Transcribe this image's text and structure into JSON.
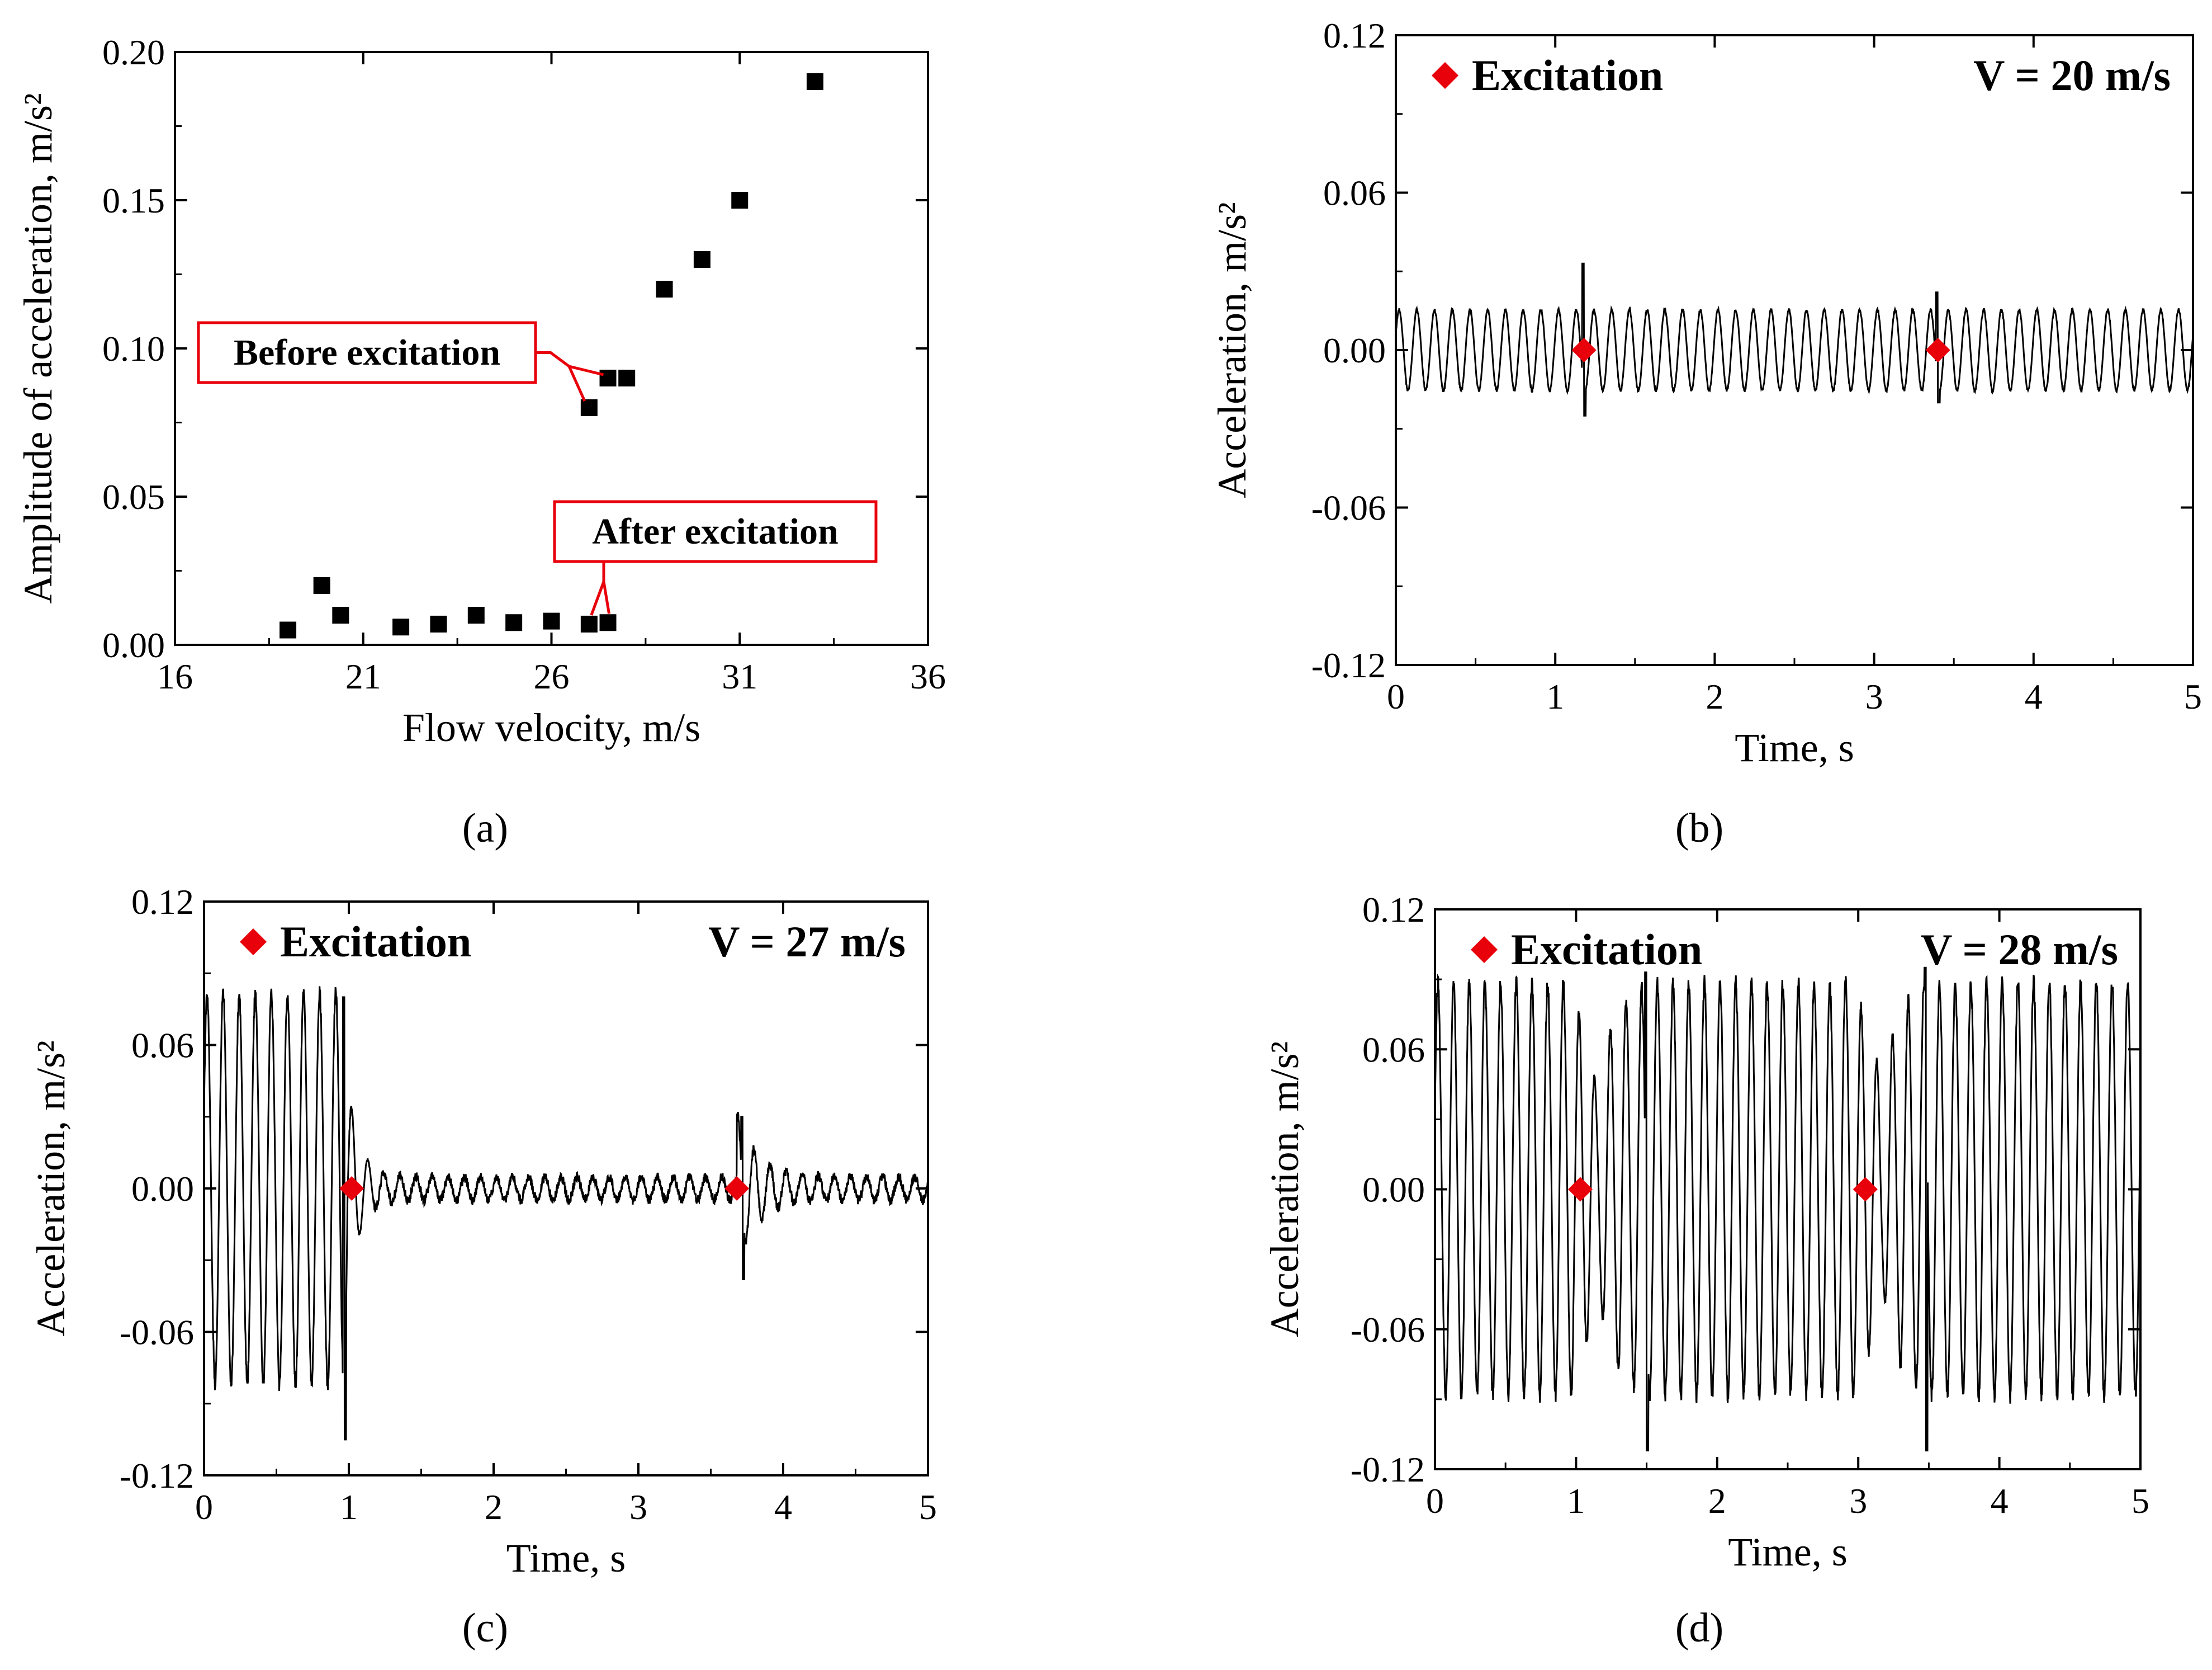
{
  "chart_data": [
    {
      "id": "a",
      "type": "scatter",
      "panel_label": "(a)",
      "xlabel": "Flow velocity, m/s",
      "ylabel": "Amplitude of acceleration, m/s²",
      "xlim": [
        16,
        36
      ],
      "ylim": [
        0,
        0.2
      ],
      "xticks": [
        "16",
        "21",
        "26",
        "31",
        "36"
      ],
      "yticks": [
        "0.00",
        "0.05",
        "0.10",
        "0.15",
        "0.20"
      ],
      "series": [
        {
          "name": "Amplitude",
          "marker": "square",
          "color": "#000000",
          "x": [
            19,
            19.9,
            20.4,
            22,
            23,
            24,
            25,
            26,
            27,
            27.5,
            27,
            27.5,
            28,
            29,
            30,
            31,
            33
          ],
          "y": [
            0.005,
            0.02,
            0.01,
            0.006,
            0.007,
            0.01,
            0.0075,
            0.008,
            0.007,
            0.0075,
            0.08,
            0.09,
            0.09,
            0.12,
            0.13,
            0.15,
            0.19
          ]
        }
      ],
      "annotations": [
        {
          "text": "Before excitation",
          "points_to": [
            [
              27,
              0.08
            ],
            [
              27.5,
              0.09
            ]
          ]
        },
        {
          "text": "After excitation",
          "points_to": [
            [
              27,
              0.007
            ],
            [
              27.5,
              0.0075
            ]
          ]
        }
      ]
    },
    {
      "id": "b",
      "type": "line",
      "panel_label": "(b)",
      "xlabel": "Time, s",
      "ylabel": "Acceleration, m/s²",
      "xlim": [
        0,
        5
      ],
      "ylim": [
        -0.12,
        0.12
      ],
      "xticks": [
        "0",
        "1",
        "2",
        "3",
        "4",
        "5"
      ],
      "yticks": [
        "-0.12",
        "-0.06",
        "0.00",
        "0.06",
        "0.12"
      ],
      "legend_label": "Excitation",
      "velocity_label": "V = 20 m/s",
      "excitation_times": [
        1.18,
        3.4
      ],
      "signal": {
        "frequency_hz": 9,
        "pre_amplitude": 0.016,
        "post_amplitude": 0.016,
        "transition": "constant",
        "spikes": [
          [
            1.18,
            0.033,
            -0.025
          ],
          [
            3.4,
            0.022,
            -0.02
          ]
        ]
      }
    },
    {
      "id": "c",
      "type": "line",
      "panel_label": "(c)",
      "xlabel": "Time, s",
      "ylabel": "Acceleration, m/s²",
      "xlim": [
        0,
        5
      ],
      "ylim": [
        -0.12,
        0.12
      ],
      "xticks": [
        "0",
        "1",
        "2",
        "3",
        "4",
        "5"
      ],
      "yticks": [
        "-0.12",
        "-0.06",
        "0.00",
        "0.06",
        "0.12"
      ],
      "legend_label": "Excitation",
      "velocity_label": "V = 27 m/s",
      "excitation_times": [
        1.02,
        3.68
      ],
      "signal": {
        "frequency_hz": 9,
        "pre_amplitude": 0.085,
        "post_amplitude": 0.005,
        "transition": "decay-at-first-excitation",
        "spikes": [
          [
            0.97,
            0.08,
            -0.105
          ],
          [
            3.72,
            0.03,
            -0.038
          ]
        ]
      }
    },
    {
      "id": "d",
      "type": "line",
      "panel_label": "(d)",
      "xlabel": "Time, s",
      "ylabel": "Acceleration, m/s²",
      "xlim": [
        0,
        5
      ],
      "ylim": [
        -0.12,
        0.12
      ],
      "xticks": [
        "0",
        "1",
        "2",
        "3",
        "4",
        "5"
      ],
      "yticks": [
        "-0.12",
        "-0.06",
        "0.00",
        "0.06",
        "0.12"
      ],
      "legend_label": "Excitation",
      "velocity_label": "V = 28 m/s",
      "excitation_times": [
        1.03,
        3.05
      ],
      "signal": {
        "frequency_hz": 9,
        "pre_amplitude": 0.092,
        "post_amplitude": 0.092,
        "transition": "dip-at-excitations",
        "spikes": [
          [
            1.5,
            0.093,
            -0.112
          ],
          [
            3.48,
            0.095,
            -0.112
          ]
        ]
      }
    }
  ],
  "colors": {
    "marker": "#000000",
    "line": "#000000",
    "excitation": "#e8000b",
    "annotation_border": "#e8000b"
  }
}
